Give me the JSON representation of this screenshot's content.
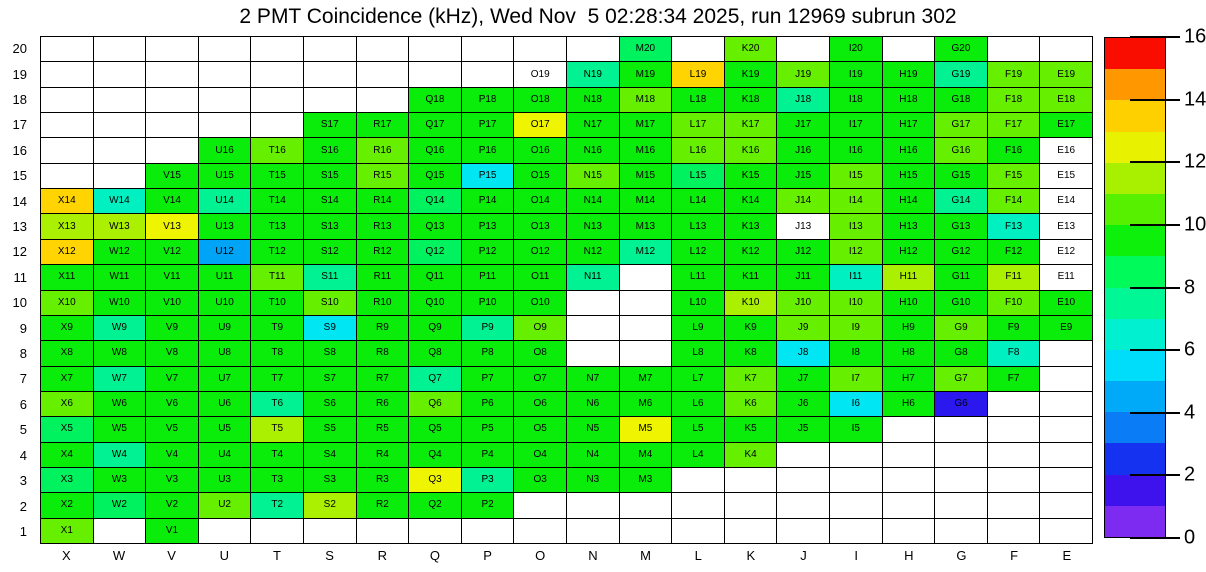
{
  "title": "2 PMT Coincidence (kHz), Wed Nov  5 02:28:34 2025, run 12969 subrun 302",
  "chart_data": {
    "type": "heatmap",
    "title": "2 PMT Coincidence (kHz), Wed Nov  5 02:28:34 2025, run 12969 subrun 302",
    "columns": [
      "X",
      "W",
      "V",
      "U",
      "T",
      "S",
      "R",
      "Q",
      "P",
      "O",
      "N",
      "M",
      "L",
      "K",
      "J",
      "I",
      "H",
      "G",
      "F",
      "E"
    ],
    "rows": [
      20,
      19,
      18,
      17,
      16,
      15,
      14,
      13,
      12,
      11,
      10,
      9,
      8,
      7,
      6,
      5,
      4,
      3,
      2,
      1
    ],
    "grid_on": true,
    "legend_position": "right-colorbar",
    "colorbar": {
      "min": 0,
      "max": 16,
      "ticks": [
        0,
        2,
        4,
        6,
        8,
        10,
        12,
        14,
        16
      ],
      "band_colors_bottom_to_top": [
        "#7D2BF0",
        "#3D12EC",
        "#1432F0",
        "#0A7CF6",
        "#00AAF8",
        "#00DDFA",
        "#00F0D0",
        "#00F796",
        "#00FA5A",
        "#0CF00C",
        "#57F000",
        "#A8F000",
        "#E8F200",
        "#FFD000",
        "#FF9800",
        "#F90D00"
      ]
    },
    "palette": {
      "g": "#0AEC0A",
      "lg": "#66F000",
      "gy": "#ABF000",
      "y": "#EFF400",
      "gold": "#FFD400",
      "mint": "#00F25E",
      "sg": "#00F292",
      "tq": "#00F0C2",
      "cy": "#00E6F2",
      "db": "#00A4F6",
      "bl": "#2A18EF",
      "w": "#FFFFFF"
    },
    "value_estimates_kHz": {
      "g": 9.5,
      "lg": 10.7,
      "gy": 11.5,
      "y": 12.5,
      "gold": 13.3,
      "mint": 8.3,
      "sg": 7.4,
      "tq": 6.4,
      "cy": 5.4,
      "db": 4.4,
      "bl": 2.4,
      "w": null
    },
    "cells": {
      "20": [
        "",
        "",
        "",
        "",
        "",
        "",
        "",
        "",
        "",
        "",
        "",
        "mint",
        "",
        "lg",
        "",
        "g",
        "",
        "g",
        "",
        ""
      ],
      "19": [
        "",
        "",
        "",
        "",
        "",
        "",
        "",
        "",
        "",
        "w",
        "sg",
        "g",
        "gold",
        "g",
        "lg",
        "g",
        "g",
        "sg",
        "lg",
        "lg"
      ],
      "18": [
        "",
        "",
        "",
        "",
        "",
        "",
        "",
        "g",
        "g",
        "g",
        "g",
        "lg",
        "g",
        "g",
        "sg",
        "g",
        "g",
        "g",
        "lg",
        "lg"
      ],
      "17": [
        "",
        "",
        "",
        "",
        "",
        "g",
        "g",
        "g",
        "g",
        "y",
        "g",
        "g",
        "lg",
        "lg",
        "g",
        "g",
        "g",
        "lg",
        "lg",
        "g"
      ],
      "16": [
        "",
        "",
        "",
        "g",
        "lg",
        "g",
        "lg",
        "g",
        "g",
        "g",
        "g",
        "g",
        "lg",
        "lg",
        "g",
        "g",
        "g",
        "lg",
        "g",
        "w"
      ],
      "15": [
        "",
        "",
        "g",
        "g",
        "g",
        "g",
        "lg",
        "g",
        "cy",
        "g",
        "lg",
        "g",
        "mint",
        "g",
        "g",
        "lg",
        "g",
        "g",
        "lg",
        "w"
      ],
      "14": [
        "gold",
        "tq",
        "g",
        "sg",
        "g",
        "g",
        "g",
        "mint",
        "g",
        "g",
        "g",
        "g",
        "g",
        "g",
        "lg",
        "lg",
        "g",
        "sg",
        "lg",
        "w"
      ],
      "13": [
        "gy",
        "gy",
        "y",
        "g",
        "g",
        "g",
        "g",
        "g",
        "g",
        "g",
        "g",
        "g",
        "g",
        "g",
        "w",
        "lg",
        "g",
        "g",
        "tq",
        "w"
      ],
      "12": [
        "gold",
        "g",
        "g",
        "db",
        "g",
        "g",
        "g",
        "mint",
        "g",
        "g",
        "g",
        "sg",
        "g",
        "g",
        "g",
        "lg",
        "g",
        "g",
        "g",
        "w"
      ],
      "11": [
        "g",
        "g",
        "g",
        "g",
        "lg",
        "sg",
        "g",
        "g",
        "g",
        "g",
        "sg",
        "",
        "g",
        "g",
        "g",
        "tq",
        "gy",
        "g",
        "gy",
        "w"
      ],
      "10": [
        "lg",
        "g",
        "g",
        "g",
        "g",
        "lg",
        "g",
        "g",
        "g",
        "g",
        "",
        "",
        "g",
        "gy",
        "lg",
        "lg",
        "g",
        "g",
        "lg",
        "g"
      ],
      "9": [
        "g",
        "sg",
        "g",
        "g",
        "g",
        "cy",
        "g",
        "g",
        "sg",
        "lg",
        "",
        "",
        "g",
        "g",
        "lg",
        "lg",
        "g",
        "lg",
        "g",
        "g"
      ],
      "8": [
        "g",
        "g",
        "g",
        "g",
        "g",
        "g",
        "g",
        "g",
        "g",
        "g",
        "",
        "",
        "g",
        "g",
        "cy",
        "g",
        "g",
        "g",
        "tq",
        ""
      ],
      "7": [
        "g",
        "sg",
        "g",
        "g",
        "g",
        "g",
        "g",
        "sg",
        "g",
        "g",
        "g",
        "g",
        "g",
        "lg",
        "g",
        "lg",
        "g",
        "lg",
        "g",
        ""
      ],
      "6": [
        "lg",
        "g",
        "g",
        "g",
        "sg",
        "g",
        "g",
        "lg",
        "g",
        "g",
        "g",
        "g",
        "g",
        "lg",
        "g",
        "cy",
        "g",
        "bl",
        "",
        ""
      ],
      "5": [
        "mint",
        "g",
        "g",
        "g",
        "gy",
        "g",
        "g",
        "g",
        "g",
        "g",
        "g",
        "y",
        "g",
        "g",
        "g",
        "g",
        "",
        "",
        "",
        ""
      ],
      "4": [
        "g",
        "sg",
        "g",
        "g",
        "g",
        "g",
        "g",
        "g",
        "g",
        "g",
        "g",
        "g",
        "g",
        "lg",
        "",
        "",
        "",
        "",
        "",
        ""
      ],
      "3": [
        "mint",
        "g",
        "g",
        "g",
        "g",
        "g",
        "g",
        "y",
        "sg",
        "g",
        "g",
        "g",
        "",
        "",
        "",
        "",
        "",
        "",
        "",
        ""
      ],
      "2": [
        "g",
        "mint",
        "g",
        "lg",
        "sg",
        "gy",
        "g",
        "g",
        "g",
        "",
        "",
        "",
        "",
        "",
        "",
        "",
        "",
        "",
        "",
        ""
      ],
      "1": [
        "lg",
        "",
        "g",
        "",
        "",
        "",
        "",
        "",
        "",
        "",
        "",
        "",
        "",
        "",
        "",
        "",
        "",
        "",
        "",
        ""
      ]
    }
  }
}
